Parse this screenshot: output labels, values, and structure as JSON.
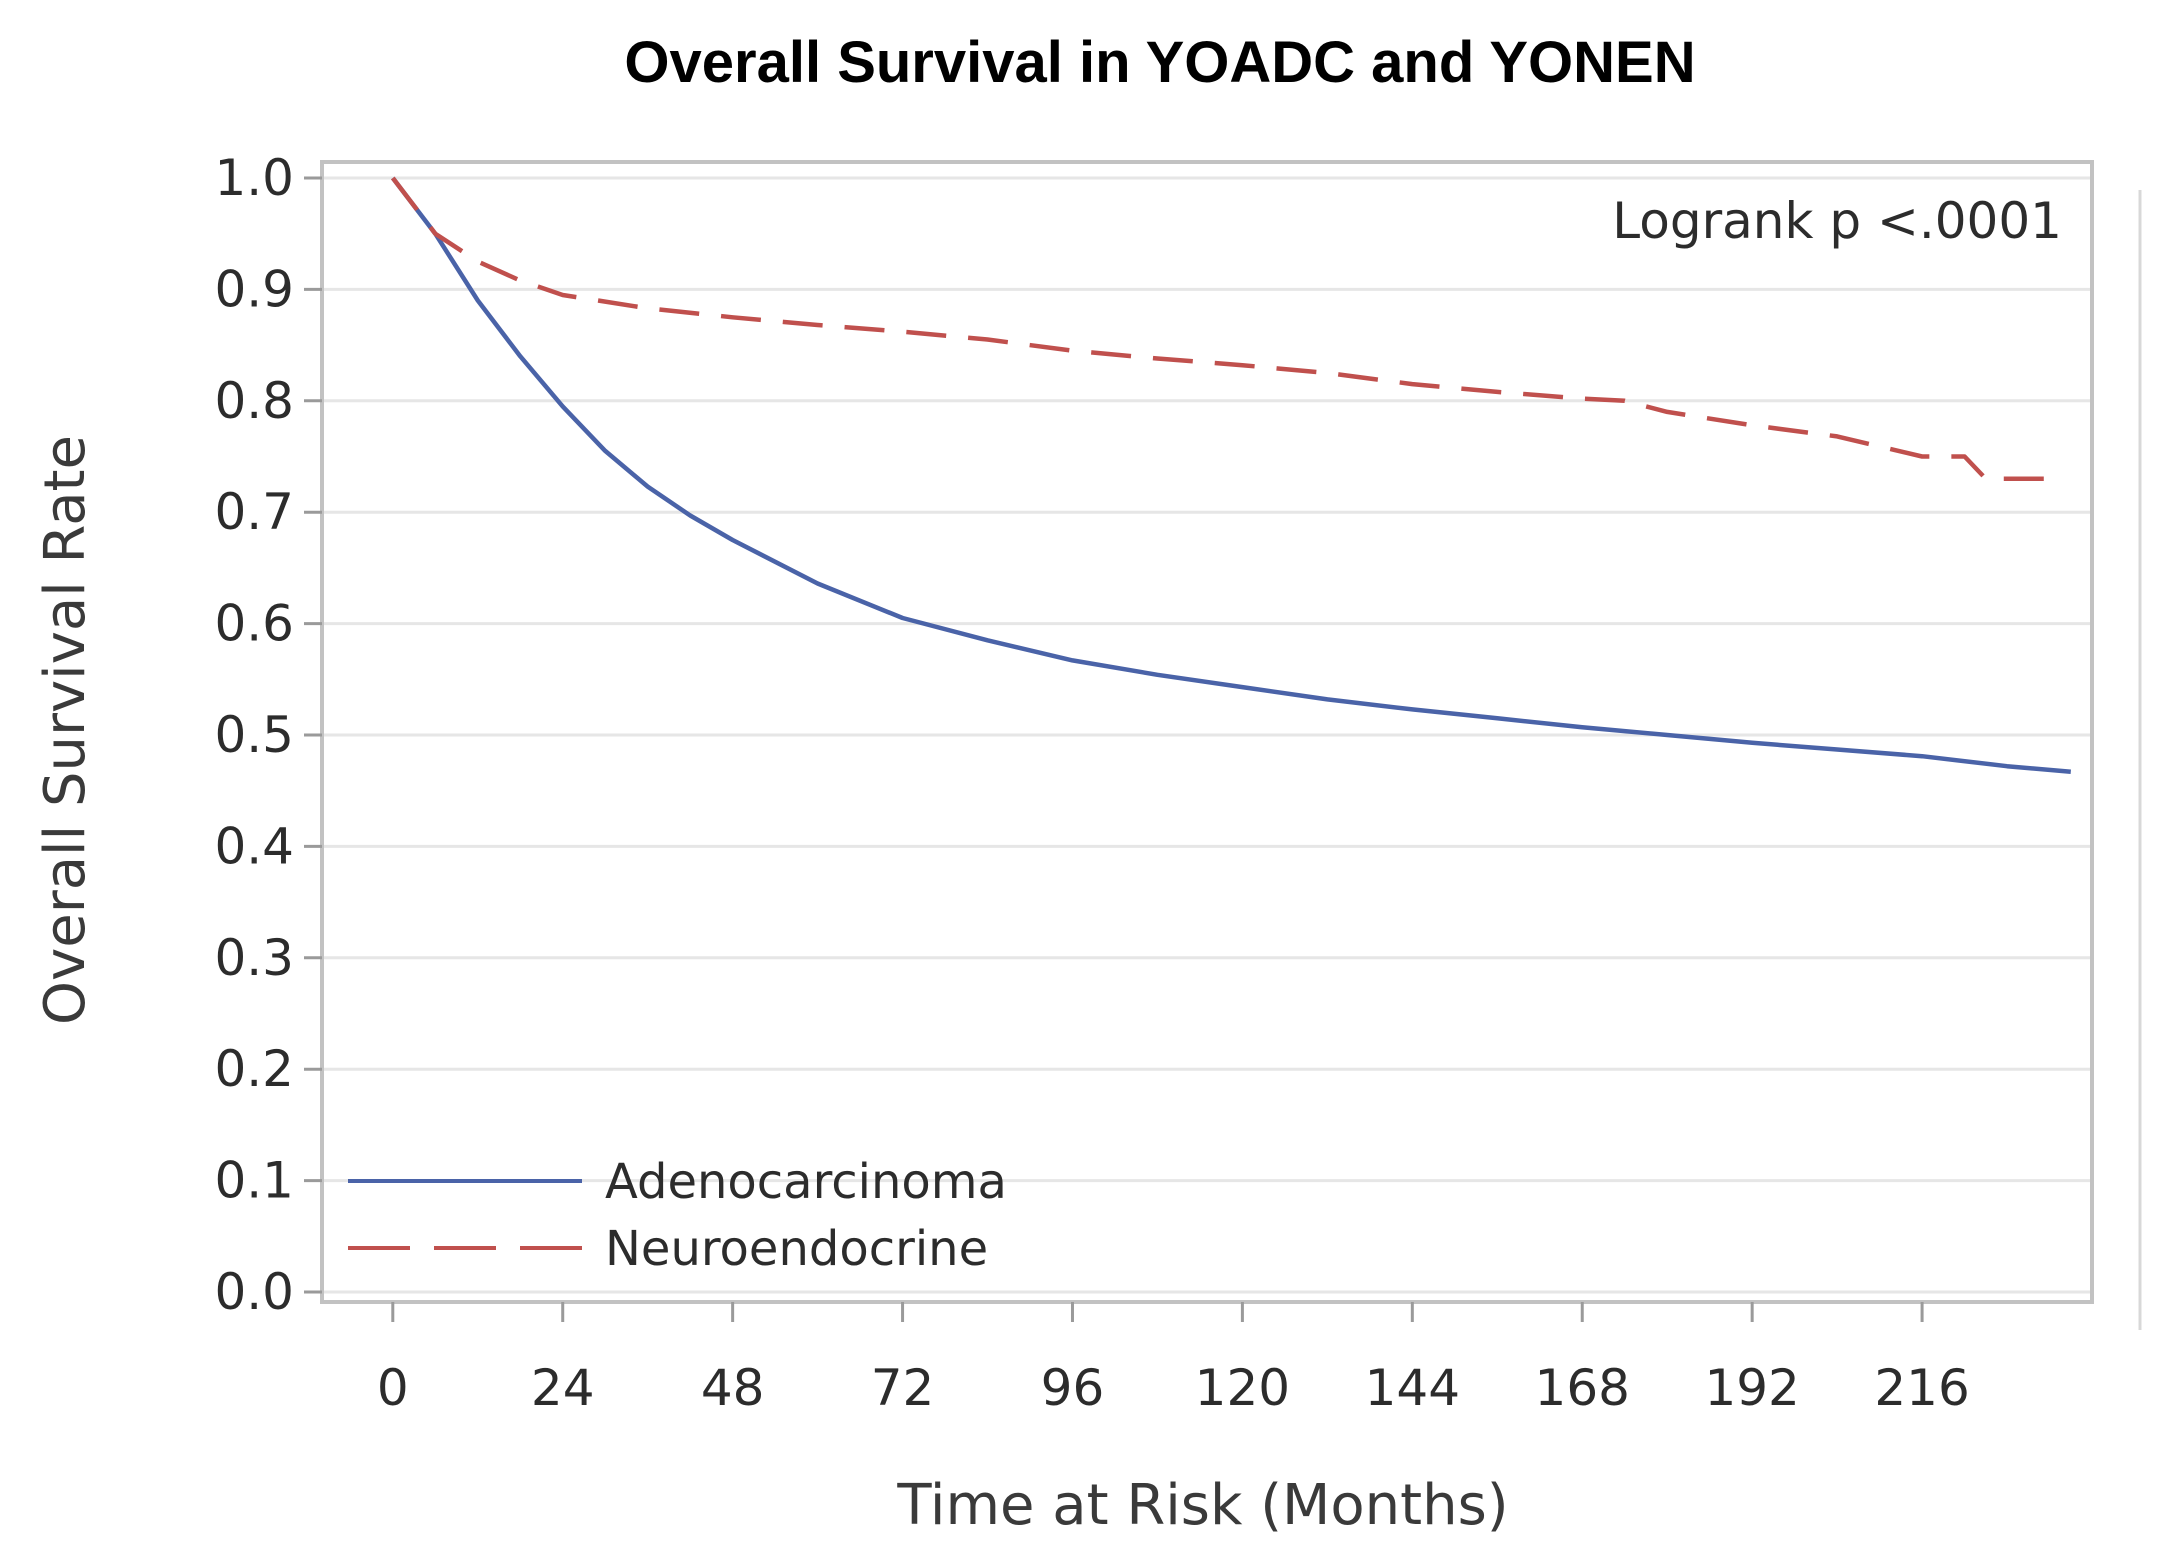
{
  "chart_data": {
    "type": "line",
    "title": "Overall Survival in YOADC and YONEN",
    "xlabel": "Time at Risk (Months)",
    "ylabel": "Overall Survival Rate",
    "xlim": [
      -10,
      240
    ],
    "ylim": [
      0,
      1.0
    ],
    "x_ticks": [
      0,
      24,
      48,
      72,
      96,
      120,
      144,
      168,
      192,
      216
    ],
    "x_tick_labels": [
      "0",
      "24",
      "48",
      "72",
      "96",
      "120",
      "144",
      "168",
      "192",
      "216"
    ],
    "y_ticks": [
      0.0,
      0.1,
      0.2,
      0.3,
      0.4,
      0.5,
      0.6,
      0.7,
      0.8,
      0.9,
      1.0
    ],
    "y_tick_labels": [
      "0.0",
      "0.1",
      "0.2",
      "0.3",
      "0.4",
      "0.5",
      "0.6",
      "0.7",
      "0.8",
      "0.9",
      "1.0"
    ],
    "grid": true,
    "annotation": "Logrank p <.0001",
    "legend_position": "bottom-left",
    "series": [
      {
        "name": "Adenocarcinoma",
        "color": "#4a63a8",
        "dash": "solid",
        "x": [
          0,
          6,
          12,
          18,
          24,
          30,
          36,
          42,
          48,
          60,
          72,
          84,
          96,
          108,
          120,
          132,
          144,
          156,
          168,
          180,
          192,
          204,
          216,
          228,
          237
        ],
        "y": [
          1.0,
          0.95,
          0.89,
          0.84,
          0.795,
          0.755,
          0.723,
          0.697,
          0.675,
          0.636,
          0.605,
          0.585,
          0.567,
          0.554,
          0.543,
          0.532,
          0.523,
          0.515,
          0.507,
          0.5,
          0.493,
          0.487,
          0.481,
          0.472,
          0.467
        ]
      },
      {
        "name": "Neuroendocrine",
        "color": "#c0504d",
        "dash": "dashed",
        "x": [
          0,
          6,
          12,
          18,
          24,
          36,
          48,
          60,
          72,
          84,
          96,
          108,
          120,
          132,
          144,
          156,
          168,
          174,
          180,
          192,
          204,
          212,
          216,
          222,
          225,
          234
        ],
        "y": [
          1.0,
          0.95,
          0.925,
          0.908,
          0.895,
          0.883,
          0.875,
          0.868,
          0.862,
          0.855,
          0.845,
          0.838,
          0.832,
          0.825,
          0.815,
          0.808,
          0.802,
          0.8,
          0.79,
          0.778,
          0.768,
          0.756,
          0.75,
          0.75,
          0.73,
          0.73
        ]
      }
    ]
  }
}
